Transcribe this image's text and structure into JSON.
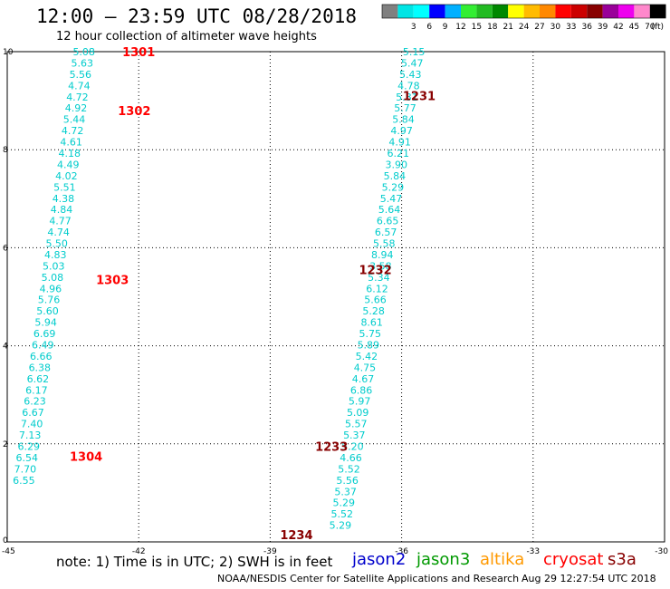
{
  "header": {
    "title": "12:00 – 23:59 UTC 08/28/2018",
    "subtitle": "12 hour collection of altimeter wave heights"
  },
  "legend": {
    "unit": "(ft)",
    "bins": [
      {
        "label": "",
        "color": "#808080"
      },
      {
        "label": "3",
        "color": "#00e5e5"
      },
      {
        "label": "6",
        "color": "#00ffff"
      },
      {
        "label": "9",
        "color": "#0000ff"
      },
      {
        "label": "12",
        "color": "#00b0ff"
      },
      {
        "label": "15",
        "color": "#33ee33"
      },
      {
        "label": "18",
        "color": "#22bb22"
      },
      {
        "label": "21",
        "color": "#008800"
      },
      {
        "label": "24",
        "color": "#ffff00"
      },
      {
        "label": "27",
        "color": "#ffbb00"
      },
      {
        "label": "30",
        "color": "#ff8800"
      },
      {
        "label": "33",
        "color": "#ff0000"
      },
      {
        "label": "36",
        "color": "#cc0000"
      },
      {
        "label": "39",
        "color": "#880000"
      },
      {
        "label": "42",
        "color": "#990099"
      },
      {
        "label": "45",
        "color": "#ee00ee"
      },
      {
        "label": "70",
        "color": "#ff88cc"
      },
      {
        "label": "",
        "color": "#000000"
      }
    ]
  },
  "axes": {
    "x_range": [
      -45,
      -30
    ],
    "y_range": [
      0,
      10
    ],
    "x_ticks": [
      {
        "v": -45,
        "label": "-45"
      },
      {
        "v": -42,
        "label": "-42"
      },
      {
        "v": -39,
        "label": "-39"
      },
      {
        "v": -36,
        "label": "-36"
      },
      {
        "v": -33,
        "label": "-33"
      },
      {
        "v": -30,
        "label": "-30"
      }
    ],
    "y_ticks": [
      {
        "v": 0,
        "label": "0"
      },
      {
        "v": 2,
        "label": "2"
      },
      {
        "v": 4,
        "label": "4"
      },
      {
        "v": 6,
        "label": "6"
      },
      {
        "v": 8,
        "label": "8"
      },
      {
        "v": 10,
        "label": "10"
      }
    ],
    "grid": "dotted"
  },
  "colors": {
    "swh_values": "#00cccc",
    "time_label_a": "#ff0000",
    "time_label_b": "#880000"
  },
  "chart_data": {
    "type": "scatter",
    "x_label": "",
    "y_label": "",
    "tracks": [
      {
        "time_color": "time_label_a",
        "time_labels": [
          {
            "text": "1301",
            "lon": -42.0,
            "lat": 10.0
          },
          {
            "text": "1302",
            "lon": -42.1,
            "lat": 8.8
          },
          {
            "text": "1303",
            "lon": -42.6,
            "lat": 5.35
          },
          {
            "text": "1304",
            "lon": -43.2,
            "lat": 1.75
          }
        ],
        "points": [
          {
            "v": "5.08",
            "lon": -43.25,
            "lat": 10.0
          },
          {
            "v": "5.63",
            "lon": -43.29,
            "lat": 9.77
          },
          {
            "v": "5.56",
            "lon": -43.33,
            "lat": 9.54
          },
          {
            "v": "4.74",
            "lon": -43.36,
            "lat": 9.31
          },
          {
            "v": "4.72",
            "lon": -43.4,
            "lat": 9.08
          },
          {
            "v": "4.92",
            "lon": -43.43,
            "lat": 8.85
          },
          {
            "v": "5.44",
            "lon": -43.47,
            "lat": 8.62
          },
          {
            "v": "4.72",
            "lon": -43.51,
            "lat": 8.39
          },
          {
            "v": "4.61",
            "lon": -43.54,
            "lat": 8.16
          },
          {
            "v": "4.18",
            "lon": -43.58,
            "lat": 7.93
          },
          {
            "v": "4.49",
            "lon": -43.61,
            "lat": 7.7
          },
          {
            "v": "4.02",
            "lon": -43.65,
            "lat": 7.47
          },
          {
            "v": "5.51",
            "lon": -43.69,
            "lat": 7.24
          },
          {
            "v": "4.38",
            "lon": -43.72,
            "lat": 7.01
          },
          {
            "v": "4.84",
            "lon": -43.76,
            "lat": 6.78
          },
          {
            "v": "4.77",
            "lon": -43.79,
            "lat": 6.55
          },
          {
            "v": "4.74",
            "lon": -43.83,
            "lat": 6.32
          },
          {
            "v": "5.50",
            "lon": -43.87,
            "lat": 6.09
          },
          {
            "v": "4.83",
            "lon": -43.9,
            "lat": 5.86
          },
          {
            "v": "5.03",
            "lon": -43.94,
            "lat": 5.63
          },
          {
            "v": "5.08",
            "lon": -43.97,
            "lat": 5.4
          },
          {
            "v": "4.96",
            "lon": -44.01,
            "lat": 5.17
          },
          {
            "v": "5.76",
            "lon": -44.05,
            "lat": 4.94
          },
          {
            "v": "5.60",
            "lon": -44.08,
            "lat": 4.71
          },
          {
            "v": "5.94",
            "lon": -44.12,
            "lat": 4.48
          },
          {
            "v": "6.69",
            "lon": -44.15,
            "lat": 4.25
          },
          {
            "v": "6.49",
            "lon": -44.19,
            "lat": 4.02
          },
          {
            "v": "6.66",
            "lon": -44.23,
            "lat": 3.79
          },
          {
            "v": "6.38",
            "lon": -44.26,
            "lat": 3.56
          },
          {
            "v": "6.62",
            "lon": -44.3,
            "lat": 3.33
          },
          {
            "v": "6.17",
            "lon": -44.33,
            "lat": 3.1
          },
          {
            "v": "6.23",
            "lon": -44.37,
            "lat": 2.87
          },
          {
            "v": "6.67",
            "lon": -44.41,
            "lat": 2.64
          },
          {
            "v": "7.40",
            "lon": -44.44,
            "lat": 2.41
          },
          {
            "v": "7.13",
            "lon": -44.48,
            "lat": 2.18
          },
          {
            "v": "6.29",
            "lon": -44.51,
            "lat": 1.95
          },
          {
            "v": "6.54",
            "lon": -44.55,
            "lat": 1.72
          },
          {
            "v": "7.70",
            "lon": -44.59,
            "lat": 1.49
          },
          {
            "v": "6.55",
            "lon": -44.62,
            "lat": 1.26
          }
        ]
      },
      {
        "time_color": "time_label_b",
        "time_labels": [
          {
            "text": "1231",
            "lon": -35.6,
            "lat": 9.1
          },
          {
            "text": "1232",
            "lon": -36.6,
            "lat": 5.55
          },
          {
            "text": "1233",
            "lon": -37.6,
            "lat": 1.95
          },
          {
            "text": "1234",
            "lon": -38.4,
            "lat": 0.15
          }
        ],
        "points": [
          {
            "v": "5.15",
            "lon": -35.72,
            "lat": 10.0
          },
          {
            "v": "5.47",
            "lon": -35.76,
            "lat": 9.77
          },
          {
            "v": "5.43",
            "lon": -35.8,
            "lat": 9.54
          },
          {
            "v": "4.78",
            "lon": -35.84,
            "lat": 9.31
          },
          {
            "v": "5.81",
            "lon": -35.88,
            "lat": 9.08
          },
          {
            "v": "5.77",
            "lon": -35.92,
            "lat": 8.85
          },
          {
            "v": "5.84",
            "lon": -35.96,
            "lat": 8.62
          },
          {
            "v": "4.97",
            "lon": -36.0,
            "lat": 8.39
          },
          {
            "v": "4.91",
            "lon": -36.04,
            "lat": 8.16
          },
          {
            "v": "6.21",
            "lon": -36.08,
            "lat": 7.93
          },
          {
            "v": "3.90",
            "lon": -36.12,
            "lat": 7.7
          },
          {
            "v": "5.84",
            "lon": -36.16,
            "lat": 7.47
          },
          {
            "v": "5.29",
            "lon": -36.2,
            "lat": 7.24
          },
          {
            "v": "5.47",
            "lon": -36.24,
            "lat": 7.01
          },
          {
            "v": "5.64",
            "lon": -36.28,
            "lat": 6.78
          },
          {
            "v": "6.65",
            "lon": -36.32,
            "lat": 6.55
          },
          {
            "v": "6.57",
            "lon": -36.36,
            "lat": 6.32
          },
          {
            "v": "5.58",
            "lon": -36.4,
            "lat": 6.09
          },
          {
            "v": "8.94",
            "lon": -36.44,
            "lat": 5.86
          },
          {
            "v": "3.58",
            "lon": -36.48,
            "lat": 5.63
          },
          {
            "v": "5.34",
            "lon": -36.52,
            "lat": 5.4
          },
          {
            "v": "6.12",
            "lon": -36.56,
            "lat": 5.17
          },
          {
            "v": "5.66",
            "lon": -36.6,
            "lat": 4.94
          },
          {
            "v": "5.28",
            "lon": -36.64,
            "lat": 4.71
          },
          {
            "v": "8.61",
            "lon": -36.68,
            "lat": 4.48
          },
          {
            "v": "5.75",
            "lon": -36.72,
            "lat": 4.25
          },
          {
            "v": "5.89",
            "lon": -36.76,
            "lat": 4.02
          },
          {
            "v": "5.42",
            "lon": -36.8,
            "lat": 3.79
          },
          {
            "v": "4.75",
            "lon": -36.84,
            "lat": 3.56
          },
          {
            "v": "4.67",
            "lon": -36.88,
            "lat": 3.33
          },
          {
            "v": "6.86",
            "lon": -36.92,
            "lat": 3.1
          },
          {
            "v": "5.97",
            "lon": -36.96,
            "lat": 2.87
          },
          {
            "v": "5.09",
            "lon": -37.0,
            "lat": 2.64
          },
          {
            "v": "5.57",
            "lon": -37.04,
            "lat": 2.41
          },
          {
            "v": "5.37",
            "lon": -37.08,
            "lat": 2.18
          },
          {
            "v": "5.20",
            "lon": -37.12,
            "lat": 1.95
          },
          {
            "v": "4.66",
            "lon": -37.16,
            "lat": 1.72
          },
          {
            "v": "5.52",
            "lon": -37.2,
            "lat": 1.49
          },
          {
            "v": "5.56",
            "lon": -37.24,
            "lat": 1.26
          },
          {
            "v": "5.37",
            "lon": -37.28,
            "lat": 1.03
          },
          {
            "v": "5.29",
            "lon": -37.32,
            "lat": 0.8
          },
          {
            "v": "5.52",
            "lon": -37.36,
            "lat": 0.57
          },
          {
            "v": "5.29",
            "lon": -37.4,
            "lat": 0.34
          }
        ]
      }
    ]
  },
  "footer": {
    "note": "note:  1) Time is in UTC;  2) SWH is in feet",
    "credit": "NOAA/NESDIS Center for Satellite Applications and Research",
    "generated": "Aug 29 12:27:54 UTC 2018",
    "missions": [
      {
        "name": "jason2",
        "color": "#0000cc"
      },
      {
        "name": "jason3",
        "color": "#009900"
      },
      {
        "name": "altika",
        "color": "#ff9900"
      },
      {
        "name": "cryosat",
        "color": "#ff0000"
      },
      {
        "name": "s3a",
        "color": "#880000"
      }
    ]
  }
}
